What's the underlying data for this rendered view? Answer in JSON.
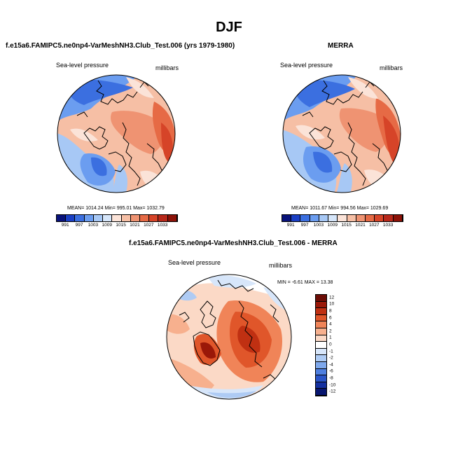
{
  "figure": {
    "title": "DJF"
  },
  "panels": [
    {
      "id": "model",
      "title": "f.e15a6.FAMIPC5.ne0np4-VarMeshNH3.Club_Test.006 (yrs 1979-1980)",
      "variable": "Sea-level pressure",
      "units": "millibars",
      "stats": "MEAN= 1014.24  Min= 995.01  Max= 1032.79",
      "colorbar_labels": [
        "991",
        "997",
        "1003",
        "1009",
        "1015",
        "1021",
        "1027",
        "1033"
      ]
    },
    {
      "id": "obs",
      "title": "MERRA",
      "variable": "Sea-level pressure",
      "units": "millibars",
      "stats": "MEAN= 1011.67  Min= 994.56  Max= 1029.69",
      "colorbar_labels": [
        "991",
        "997",
        "1003",
        "1009",
        "1015",
        "1021",
        "1027",
        "1033"
      ]
    },
    {
      "id": "diff",
      "title": "f.e15a6.FAMIPC5.ne0np4-VarMeshNH3.Club_Test.006 - MERRA",
      "variable": "Sea-level pressure",
      "units": "millibars",
      "stats": "MIN = -6.61 MAX = 13.38",
      "colorbar_labels": [
        "12",
        "10",
        "8",
        "6",
        "4",
        "2",
        "1",
        "0",
        "-1",
        "-2",
        "-4",
        "-6",
        "-8",
        "-10",
        "-12"
      ]
    }
  ],
  "colors": {
    "abs_scale": [
      "#08127a",
      "#1a3fc4",
      "#3b6fe0",
      "#6b9df0",
      "#a7c8f5",
      "#d6e6fa",
      "#fbe3d8",
      "#f6bfa5",
      "#ef9372",
      "#e66a45",
      "#d64428",
      "#b8281a",
      "#8c1208"
    ],
    "diff_scale": [
      "#6b0c05",
      "#9a1808",
      "#c03012",
      "#e0562a",
      "#f08458",
      "#f7b08e",
      "#fbd9c6",
      "#ffffff",
      "#d7e6fa",
      "#aecbf4",
      "#7ea8ec",
      "#4e7fe0",
      "#2a55c8",
      "#1430a0",
      "#081670"
    ],
    "coast": "#000000"
  }
}
